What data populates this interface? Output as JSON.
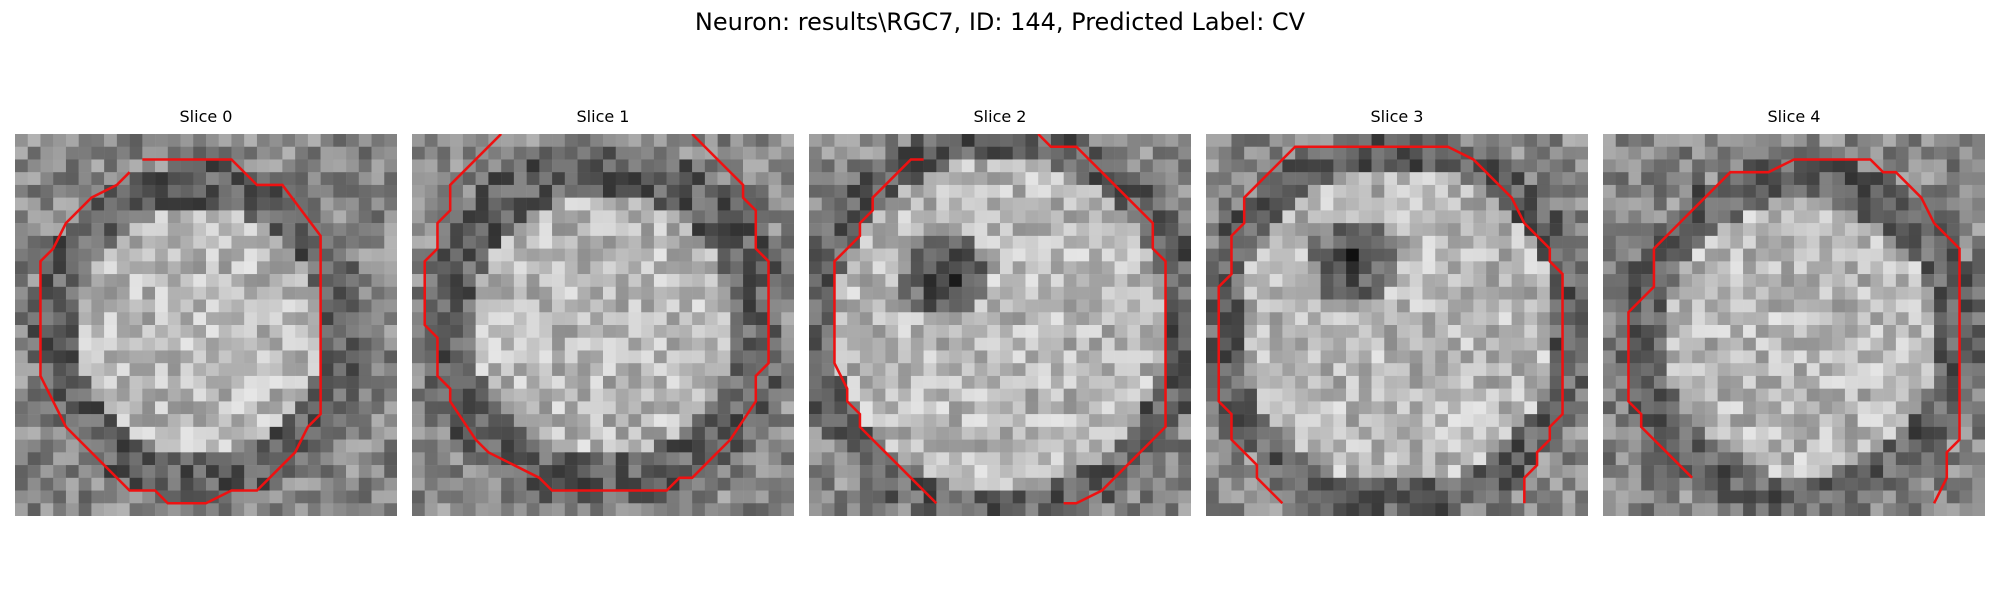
{
  "figure": {
    "title": "Neuron: results\\RGC7, ID: 144, Predicted Label: CV"
  },
  "contour_color": "#ee1111",
  "slices": [
    {
      "label": "Slice 0",
      "nucleus": "none"
    },
    {
      "label": "Slice 1",
      "nucleus": "none"
    },
    {
      "label": "Slice 2",
      "nucleus": "dark-center"
    },
    {
      "label": "Slice 3",
      "nucleus": "dark-center"
    },
    {
      "label": "Slice 4",
      "nucleus": "none"
    }
  ]
}
